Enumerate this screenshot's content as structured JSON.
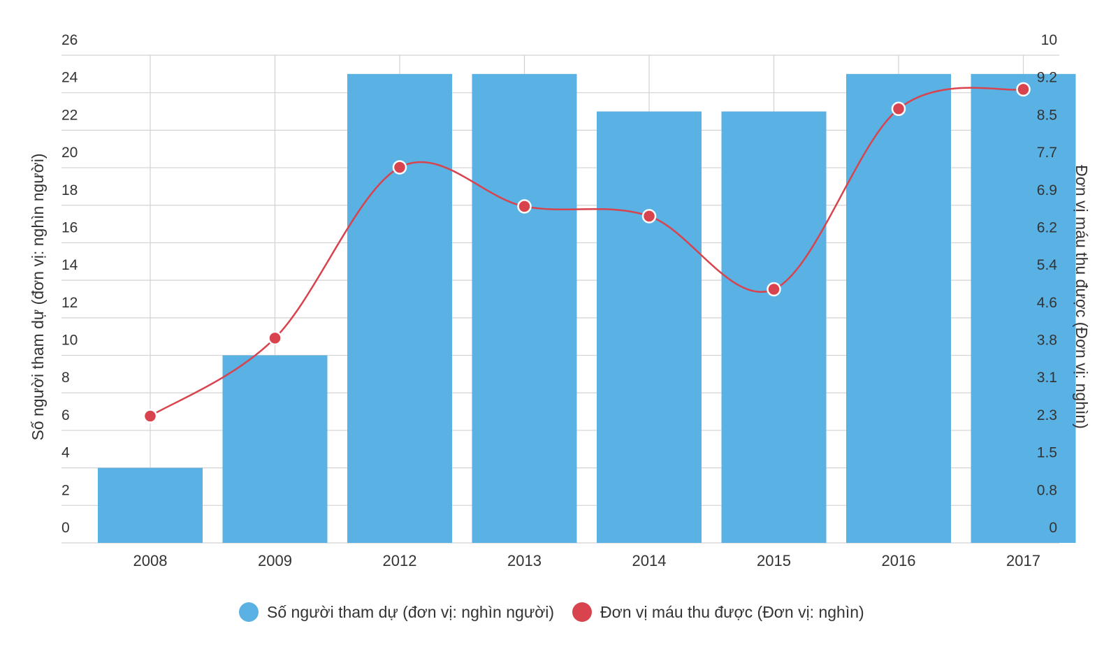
{
  "chart_data": {
    "type": "bar",
    "categories": [
      "2008",
      "2009",
      "2012",
      "2013",
      "2014",
      "2015",
      "2016",
      "2017"
    ],
    "series": [
      {
        "name": "Số người tham dự (đơn vị: nghìn người)",
        "type": "bar",
        "axis": "left",
        "color": "#5ab1e3",
        "values": [
          4,
          10,
          25,
          25,
          23,
          23,
          25,
          25
        ]
      },
      {
        "name": "Đơn vị máu thu được (Đơn vị: nghìn)",
        "type": "line",
        "axis": "right",
        "color": "#d8434d",
        "values": [
          2.6,
          4.2,
          7.7,
          6.9,
          6.7,
          5.2,
          8.9,
          9.3
        ]
      }
    ],
    "ylabel_left": "Số người tham dự (đơn vị: nghìn người)",
    "ylabel_right": "Đơn vị máu thu được (Đơn vị: nghìn)",
    "ylim_left": [
      0,
      26
    ],
    "ylim_right": [
      0,
      10
    ],
    "yticks_left": [
      "0",
      "2",
      "4",
      "6",
      "8",
      "10",
      "12",
      "14",
      "16",
      "18",
      "20",
      "22",
      "24",
      "26"
    ],
    "yticks_right": [
      "0",
      "0.8",
      "1.5",
      "2.3",
      "3.1",
      "3.8",
      "4.6",
      "5.4",
      "6.2",
      "6.9",
      "7.7",
      "8.5",
      "9.2",
      "10"
    ],
    "grid": true,
    "legend_position": "bottom"
  }
}
